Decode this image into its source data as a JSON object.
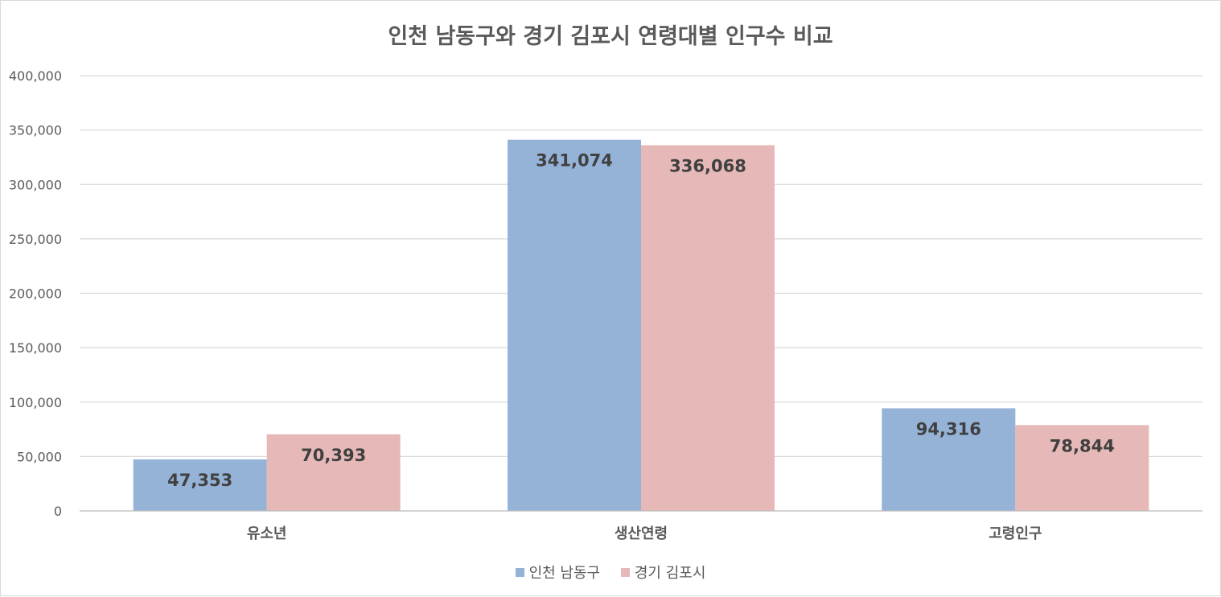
{
  "chart_data": {
    "type": "bar",
    "title": "인천 남동구와 경기 김포시 연령대별 인구수 비교",
    "categories": [
      "유소년",
      "생산연령",
      "고령인구"
    ],
    "series": [
      {
        "name": "인천 남동구",
        "values": [
          47353,
          341074,
          94316
        ],
        "labels": [
          "47,353",
          "341,074",
          "94,316"
        ],
        "color": "#95b3d7"
      },
      {
        "name": "경기 김포시",
        "values": [
          70393,
          336068,
          78844
        ],
        "labels": [
          "70,393",
          "336,068",
          "78,844"
        ],
        "color": "#e6b9b8"
      }
    ],
    "yticks": [
      0,
      50000,
      100000,
      150000,
      200000,
      250000,
      300000,
      350000,
      400000
    ],
    "ytick_labels": [
      "0",
      "50,000",
      "100,000",
      "150,000",
      "200,000",
      "250,000",
      "300,000",
      "350,000",
      "400,000"
    ],
    "ylim": [
      0,
      400000
    ],
    "grid": true,
    "legend_position": "bottom",
    "xlabel": "",
    "ylabel": ""
  }
}
